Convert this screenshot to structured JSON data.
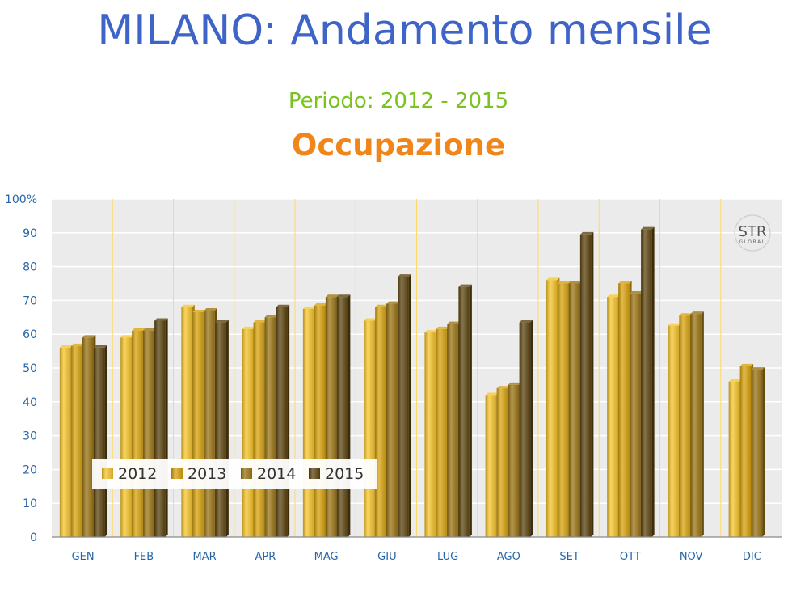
{
  "header": {
    "title": "MILANO: Andamento mensile",
    "subtitle": "Periodo: 2012 - 2015",
    "metric": "Occupazione"
  },
  "logo": {
    "text": "STR",
    "subtext": "GLOBAL"
  },
  "colors": {
    "series": [
      "#f7c52c",
      "#d9a40f",
      "#9c7615",
      "#5e4510"
    ],
    "plot_bg": "#ebebeb",
    "grid": "#ffffff",
    "month_separator": "#ffd966",
    "axis_text": "#2465a8"
  },
  "chart_data": {
    "type": "bar",
    "categories": [
      "GEN",
      "FEB",
      "MAR",
      "APR",
      "MAG",
      "GIU",
      "LUG",
      "AGO",
      "SET",
      "OTT",
      "NOV",
      "DIC"
    ],
    "series": [
      {
        "name": "2012",
        "values": [
          56,
          59,
          68,
          61.5,
          67.5,
          64,
          60.5,
          42,
          76,
          71,
          62.5,
          46
        ]
      },
      {
        "name": "2013",
        "values": [
          56.5,
          61,
          66.5,
          63.5,
          68.5,
          68,
          61.5,
          44,
          75,
          75,
          65.5,
          50.5
        ]
      },
      {
        "name": "2014",
        "values": [
          59,
          61,
          67,
          65,
          71,
          69,
          63,
          45,
          75,
          72,
          66,
          49.5
        ]
      },
      {
        "name": "2015",
        "values": [
          56,
          64,
          63.5,
          68,
          71,
          77,
          74,
          63.5,
          89.5,
          91,
          null,
          null
        ]
      }
    ],
    "y_ticks": [
      "0",
      "10",
      "20",
      "30",
      "40",
      "50",
      "60",
      "70",
      "80",
      "90",
      "100%"
    ],
    "ylim": [
      0,
      100
    ],
    "grid": true,
    "legend_position": "bottom-left"
  }
}
